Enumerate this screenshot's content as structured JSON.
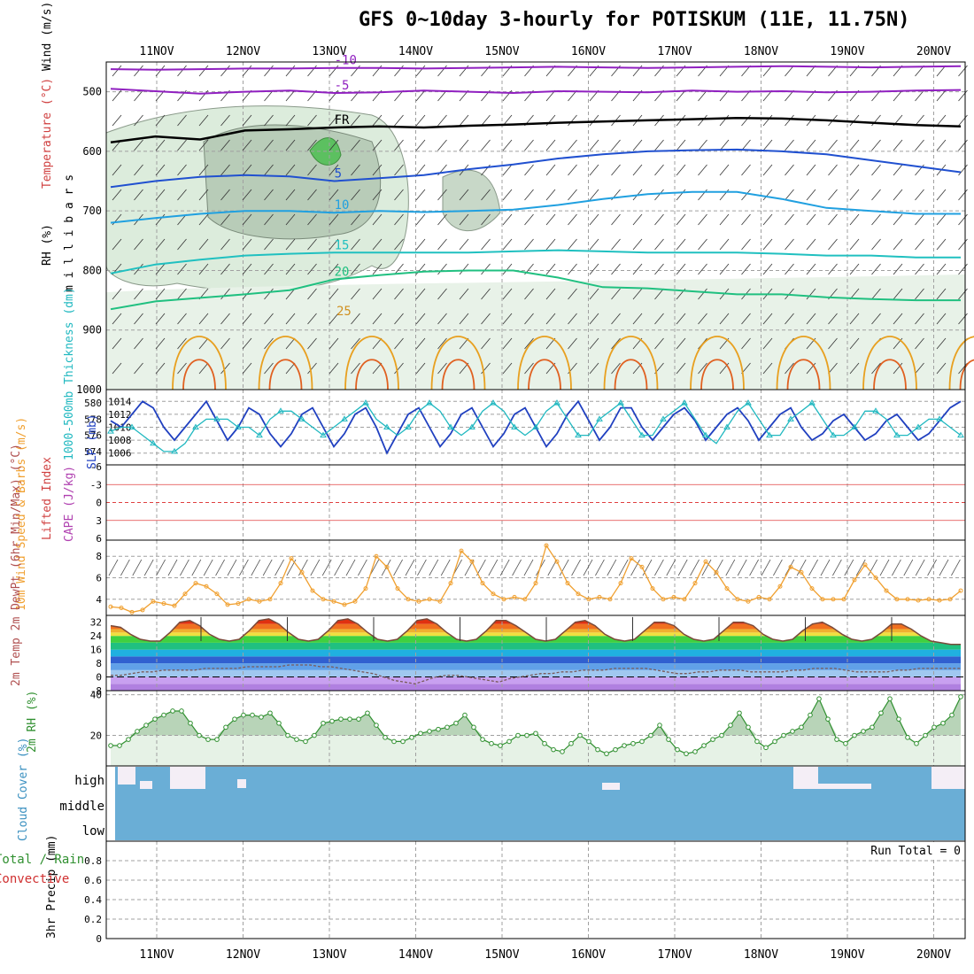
{
  "title": "GFS 0~10day 3-hourly for POTISKUM (11E, 11.75N)",
  "dates": [
    "11NOV",
    "12NOV",
    "13NOV",
    "14NOV",
    "15NOV",
    "16NOV",
    "17NOV",
    "18NOV",
    "19NOV",
    "20NOV"
  ],
  "colors": {
    "grid": "#a0a0a0",
    "frame": "#000000",
    "cloud": "#6aaed6",
    "rh_fill": "#dcecdc",
    "wind": "#f0a030",
    "slp": "#2040c0",
    "thick": "#20b8c0"
  },
  "chart_data": [
    {
      "type": "line",
      "name": "upper-air",
      "ylabel_parts": [
        "Wind (m/s)",
        "Temperature (°C)",
        "RH (%)"
      ],
      "y_axis_label": "m i l l i b a r s",
      "y_ticks": [
        500,
        600,
        700,
        800,
        900,
        1000
      ],
      "ylim": [
        450,
        1000
      ],
      "isotherm_labels": [
        "-10",
        "-5",
        "FR",
        "5",
        "10",
        "15",
        "20",
        "25"
      ],
      "isotherms": [
        {
          "label": "-10",
          "p": [
            462,
            463,
            462,
            461,
            461,
            460,
            460,
            461,
            460,
            459,
            458,
            459,
            460,
            459,
            458,
            457,
            458,
            459,
            458,
            457
          ],
          "color": "#9020c0"
        },
        {
          "label": "-5",
          "p": [
            495,
            499,
            503,
            500,
            498,
            502,
            501,
            498,
            500,
            502,
            499,
            500,
            501,
            498,
            500,
            499,
            501,
            500,
            498,
            497
          ],
          "color": "#9020c0"
        },
        {
          "label": "FR",
          "p": [
            585,
            575,
            580,
            565,
            563,
            560,
            558,
            560,
            557,
            555,
            552,
            550,
            548,
            546,
            544,
            545,
            548,
            552,
            556,
            558
          ],
          "color": "#000000"
        },
        {
          "label": "5",
          "p": [
            660,
            650,
            643,
            640,
            642,
            650,
            645,
            640,
            630,
            622,
            612,
            605,
            600,
            598,
            597,
            600,
            605,
            615,
            625,
            635
          ],
          "color": "#2050d0"
        },
        {
          "label": "10",
          "p": [
            720,
            712,
            705,
            700,
            700,
            703,
            700,
            702,
            700,
            698,
            690,
            680,
            672,
            668,
            668,
            680,
            695,
            700,
            705,
            705
          ],
          "color": "#20a0e0"
        },
        {
          "label": "15",
          "p": [
            805,
            790,
            782,
            775,
            772,
            770,
            770,
            770,
            770,
            768,
            766,
            768,
            770,
            770,
            770,
            772,
            775,
            775,
            778,
            778
          ],
          "color": "#20c0c0"
        },
        {
          "label": "20",
          "p": [
            865,
            852,
            846,
            840,
            833,
            815,
            808,
            802,
            800,
            800,
            812,
            828,
            830,
            835,
            840,
            840,
            845,
            848,
            850,
            850
          ],
          "color": "#20c080"
        }
      ]
    },
    {
      "type": "line",
      "name": "slp-thickness",
      "ylabel": "1000-500mb Thickness (dm)",
      "ylabel2": "SLP (mb)",
      "thickness_ticks": [
        574,
        576,
        578,
        580
      ],
      "slp_ticks": [
        1006,
        1008,
        1010,
        1012,
        1014
      ],
      "slp": [
        1011,
        1010,
        1012,
        1014,
        1013,
        1010,
        1008,
        1010,
        1012,
        1014,
        1011,
        1008,
        1010,
        1013,
        1012,
        1009,
        1007,
        1009,
        1012,
        1013,
        1010,
        1007,
        1009,
        1012,
        1013,
        1010,
        1006,
        1009,
        1012,
        1013,
        1010,
        1007,
        1009,
        1012,
        1013,
        1010,
        1007,
        1009,
        1012,
        1013,
        1010,
        1007,
        1009,
        1012,
        1014,
        1011,
        1008,
        1010,
        1013,
        1013,
        1010,
        1008,
        1010,
        1012,
        1013,
        1011,
        1008,
        1010,
        1012,
        1013,
        1011,
        1008,
        1010,
        1012,
        1013,
        1010,
        1008,
        1009,
        1011,
        1012,
        1010,
        1008,
        1009,
        1011,
        1012,
        1010,
        1008,
        1009,
        1011,
        1013,
        1014
      ],
      "thickness": [
        576.5,
        577,
        577,
        576,
        575,
        574,
        574,
        575,
        577,
        578,
        578,
        578,
        577,
        577,
        576,
        578,
        579,
        579,
        578,
        577,
        576,
        577,
        578,
        579,
        580,
        578,
        577,
        576,
        577,
        579,
        580,
        579,
        577,
        576,
        577,
        579,
        580,
        579,
        577,
        576,
        577,
        579,
        580,
        578,
        576,
        576,
        578,
        579,
        580,
        578,
        576,
        576,
        578,
        579,
        580,
        578,
        576,
        575,
        577,
        579,
        580,
        578,
        576,
        576,
        578,
        579,
        580,
        578,
        576,
        576,
        577,
        579,
        579,
        578,
        576,
        576,
        577,
        578,
        578,
        577,
        576
      ]
    },
    {
      "type": "line",
      "name": "lifted-index-cape",
      "ylabel": "Lifted Index",
      "ylabel2": "CAPE (J/kg)",
      "y_ticks": [
        -6,
        -3,
        0,
        3,
        6
      ],
      "ylim": [
        -6,
        6
      ]
    },
    {
      "type": "line",
      "name": "10m-wind",
      "ylabel": "10m Wind Speed & Barbs (m/s)",
      "y_ticks": [
        4,
        6,
        8
      ],
      "ylim": [
        2.5,
        9.5
      ],
      "values": [
        3.3,
        3.2,
        2.8,
        3.0,
        3.8,
        3.6,
        3.4,
        4.5,
        5.5,
        5.2,
        4.5,
        3.5,
        3.6,
        4.0,
        3.8,
        4.0,
        5.5,
        7.8,
        6.5,
        4.8,
        4.0,
        3.8,
        3.5,
        3.8,
        5.0,
        8.0,
        7.0,
        5.0,
        4.0,
        3.8,
        4.0,
        3.8,
        5.5,
        8.5,
        7.5,
        5.5,
        4.5,
        4.0,
        4.2,
        4.0,
        5.5,
        9.0,
        7.5,
        5.5,
        4.5,
        4.0,
        4.2,
        4.0,
        5.5,
        7.8,
        7.0,
        5.0,
        4.0,
        4.2,
        4.0,
        5.5,
        7.5,
        6.5,
        5.0,
        4.0,
        3.8,
        4.2,
        4.0,
        5.2,
        7.0,
        6.5,
        5.0,
        4.0,
        4.0,
        4.0,
        5.8,
        7.2,
        6.0,
        4.8,
        4.0,
        4.0,
        3.9,
        4.0,
        3.9,
        4.0,
        4.8
      ]
    },
    {
      "type": "area",
      "name": "2m-temp",
      "ylabel": "2m Temp 2m DewPt (6hr Min/Max) (°C)",
      "y_ticks": [
        -8,
        0,
        8,
        16,
        24,
        32
      ],
      "ylim": [
        -8,
        36
      ],
      "temp": [
        30,
        29,
        25,
        22,
        21,
        21,
        26,
        32,
        33,
        30,
        25,
        22,
        21,
        22,
        27,
        33,
        34,
        31,
        26,
        22,
        21,
        22,
        27,
        33,
        34,
        31,
        26,
        22,
        21,
        22,
        27,
        33,
        34,
        31,
        26,
        22,
        21,
        22,
        27,
        33,
        33,
        30,
        26,
        22,
        21,
        22,
        27,
        32,
        33,
        30,
        25,
        22,
        21,
        22,
        27,
        32,
        32,
        30,
        25,
        22,
        21,
        22,
        27,
        32,
        32,
        30,
        25,
        22,
        21,
        22,
        27,
        31,
        32,
        29,
        25,
        22,
        21,
        22,
        26,
        31,
        31,
        28,
        24,
        21,
        20,
        19,
        19
      ],
      "dewpt": [
        1,
        1,
        2,
        3,
        3,
        4,
        4,
        4,
        4,
        5,
        5,
        5,
        5,
        6,
        6,
        6,
        6,
        7,
        7,
        7,
        6,
        6,
        5,
        4,
        3,
        2,
        0,
        -2,
        -3,
        -4,
        -2,
        0,
        1,
        1,
        0,
        -1,
        -2,
        -3,
        -1,
        0,
        1,
        2,
        2,
        3,
        3,
        4,
        4,
        4,
        5,
        5,
        5,
        5,
        4,
        3,
        2,
        2,
        3,
        3,
        4,
        4,
        4,
        3,
        3,
        3,
        3,
        4,
        4,
        5,
        5,
        5,
        4,
        3,
        3,
        3,
        3,
        4,
        4,
        5,
        5,
        5,
        5,
        5
      ]
    },
    {
      "type": "area",
      "name": "2m-rh",
      "ylabel": "2m RH (%)",
      "y_ticks": [
        20,
        40
      ],
      "ylim": [
        5,
        42
      ],
      "values": [
        15,
        15,
        18,
        22,
        25,
        28,
        30,
        32,
        32,
        26,
        20,
        18,
        18,
        24,
        28,
        30,
        30,
        29,
        31,
        26,
        20,
        18,
        17,
        20,
        26,
        27,
        28,
        28,
        28,
        31,
        25,
        19,
        17,
        17,
        19,
        21,
        22,
        23,
        24,
        26,
        30,
        24,
        18,
        16,
        15,
        17,
        20,
        20,
        21,
        16,
        13,
        12,
        16,
        20,
        17,
        13,
        11,
        13,
        15,
        16,
        17,
        20,
        25,
        18,
        13,
        11,
        12,
        15,
        18,
        20,
        25,
        31,
        24,
        17,
        14,
        17,
        20,
        22,
        24,
        30,
        38,
        28,
        18,
        16,
        20,
        22,
        24,
        31,
        38,
        28,
        19,
        16,
        20,
        24,
        26,
        30,
        39
      ]
    },
    {
      "type": "area",
      "name": "cloud-cover",
      "ylabel": "Cloud Cover (%)",
      "y_ticks": [
        "high",
        "middle",
        "low"
      ]
    },
    {
      "type": "bar",
      "name": "precip",
      "ylabel": "3hr Precip (mm)",
      "ylabel2": "Total / Rain",
      "ylabel3": "Convective",
      "y_ticks": [
        0,
        0.2,
        0.4,
        0.6,
        0.8
      ],
      "ylim": [
        0,
        1
      ],
      "run_total": "Run Total = 0",
      "values": []
    }
  ]
}
